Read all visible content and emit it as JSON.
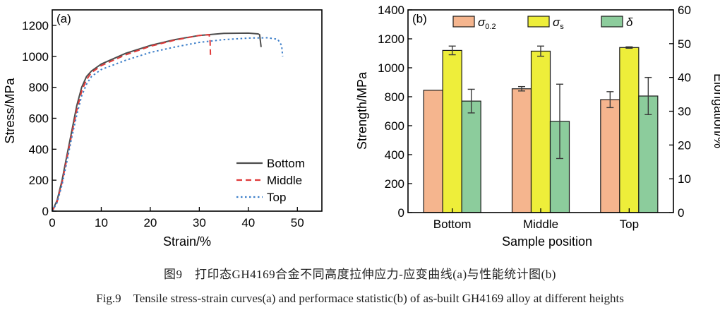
{
  "caption": {
    "cn": "图9　打印态GH4169合金不同高度拉伸应力-应变曲线(a)与性能统计图(b)",
    "en": "Fig.9　Tensile stress-strain curves(a) and performace statistic(b) of as-built GH4169 alloy at different heights"
  },
  "chart_data": [
    {
      "type": "line",
      "panel_label": "(a)",
      "xlabel": "Strain/%",
      "ylabel": "Stress/MPa",
      "xlim": [
        0,
        55
      ],
      "ylim": [
        0,
        1300
      ],
      "xticks": [
        0,
        10,
        20,
        30,
        40,
        50
      ],
      "yticks": [
        0,
        200,
        400,
        600,
        800,
        1000,
        1200
      ],
      "grid": false,
      "legend_position": "bottom-right",
      "series": [
        {
          "name": "Bottom",
          "color": "#4d4d4d",
          "dash": "solid",
          "points": [
            [
              0,
              0
            ],
            [
              1,
              70
            ],
            [
              2,
              200
            ],
            [
              3,
              360
            ],
            [
              4,
              520
            ],
            [
              5,
              680
            ],
            [
              6,
              800
            ],
            [
              7,
              870
            ],
            [
              8,
              905
            ],
            [
              10,
              950
            ],
            [
              15,
              1020
            ],
            [
              20,
              1070
            ],
            [
              25,
              1108
            ],
            [
              30,
              1135
            ],
            [
              35,
              1148
            ],
            [
              40,
              1150
            ],
            [
              42,
              1145
            ],
            [
              42.3,
              1140
            ],
            [
              42.6,
              1060
            ]
          ]
        },
        {
          "name": "Middle",
          "color": "#e03a3a",
          "dash": "dashed",
          "points": [
            [
              0,
              0
            ],
            [
              1,
              60
            ],
            [
              2,
              185
            ],
            [
              3,
              340
            ],
            [
              4,
              500
            ],
            [
              5,
              650
            ],
            [
              6,
              775
            ],
            [
              7,
              850
            ],
            [
              8,
              895
            ],
            [
              10,
              940
            ],
            [
              15,
              1010
            ],
            [
              20,
              1065
            ],
            [
              25,
              1105
            ],
            [
              30,
              1135
            ],
            [
              32,
              1140
            ],
            [
              32.2,
              1100
            ],
            [
              32.3,
              990
            ]
          ]
        },
        {
          "name": "Top",
          "color": "#3d7fc9",
          "dash": "dotted",
          "points": [
            [
              0,
              0
            ],
            [
              1,
              55
            ],
            [
              2,
              170
            ],
            [
              3,
              320
            ],
            [
              4,
              480
            ],
            [
              5,
              620
            ],
            [
              6,
              745
            ],
            [
              7,
              820
            ],
            [
              8,
              870
            ],
            [
              10,
              915
            ],
            [
              15,
              975
            ],
            [
              20,
              1025
            ],
            [
              25,
              1060
            ],
            [
              30,
              1090
            ],
            [
              35,
              1108
            ],
            [
              40,
              1118
            ],
            [
              44,
              1120
            ],
            [
              46,
              1110
            ],
            [
              46.8,
              1070
            ],
            [
              47,
              1000
            ]
          ]
        }
      ]
    },
    {
      "type": "bar",
      "panel_label": "(b)",
      "xlabel": "Sample position",
      "ylabel": "Strength/MPa",
      "ylabel_right": "Elongation/%",
      "categories": [
        "Bottom",
        "Middle",
        "Top"
      ],
      "ylim": [
        0,
        1400
      ],
      "ylim_right": [
        0,
        60
      ],
      "yticks": [
        0,
        200,
        400,
        600,
        800,
        1000,
        1200,
        1400
      ],
      "yticks_right": [
        0,
        10,
        20,
        30,
        40,
        50,
        60
      ],
      "grid": false,
      "legend_position": "top",
      "series": [
        {
          "name": "σ0.2",
          "legend_base": "σ",
          "legend_sub": "0.2",
          "axis": "left",
          "color": "#f5b58e",
          "values": [
            845,
            855,
            780
          ],
          "errors": [
            0,
            15,
            55
          ]
        },
        {
          "name": "σs",
          "legend_base": "σ",
          "legend_sub": "s",
          "axis": "left",
          "color": "#eeee3a",
          "values": [
            1120,
            1115,
            1140
          ],
          "errors": [
            30,
            35,
            5
          ]
        },
        {
          "name": "δ",
          "legend_base": "δ",
          "legend_sub": "",
          "axis": "right",
          "color": "#8ccc9c",
          "values": [
            33,
            27,
            34.5
          ],
          "errors": [
            3.5,
            11,
            5.5
          ]
        }
      ]
    }
  ]
}
